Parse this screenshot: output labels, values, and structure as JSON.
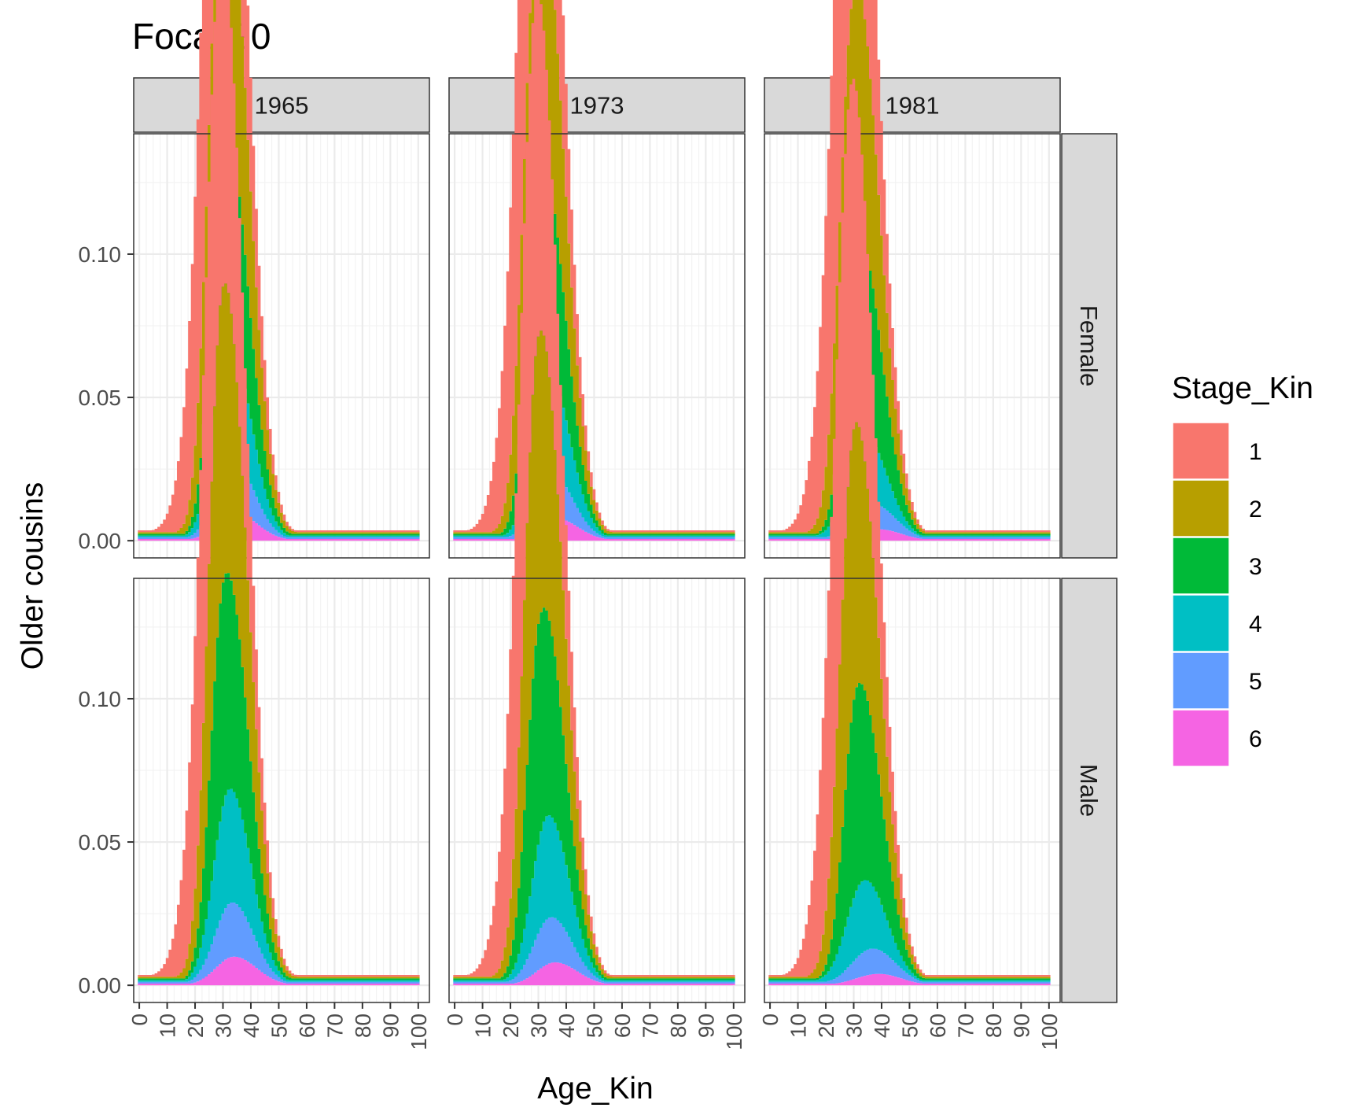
{
  "chart_data": {
    "type": "area",
    "stacked": true,
    "title": "Focal 20",
    "xlabel": "Age_Kin",
    "ylabel": "Older cousins",
    "x_ticks": [
      0,
      10,
      20,
      30,
      40,
      50,
      60,
      70,
      80,
      90,
      100
    ],
    "y_ticks": [
      "0.00",
      "0.05",
      "0.10"
    ],
    "xlim": [
      -2,
      104
    ],
    "ylim": [
      -0.006,
      0.142
    ],
    "grid": true,
    "column_facets": [
      "1965",
      "1973",
      "1981"
    ],
    "row_facets": [
      "Female",
      "Male"
    ],
    "legend": {
      "title": "Stage_Kin",
      "position": "right",
      "entries": [
        {
          "label": "1",
          "color": "#F8766D"
        },
        {
          "label": "2",
          "color": "#B79F00"
        },
        {
          "label": "3",
          "color": "#00BA38"
        },
        {
          "label": "4",
          "color": "#00BFC4"
        },
        {
          "label": "5",
          "color": "#619CFF"
        },
        {
          "label": "6",
          "color": "#F564E3"
        }
      ]
    },
    "stack_shape_note_values": "curves are gaussian bumps, given as peak value, peak age, left spread, right spread (years)",
    "panels": [
      {
        "year": "1965",
        "sex": "Female",
        "series": [
          {
            "stage": "1",
            "peak": 0.133,
            "peak_age": 26,
            "left_sd": 6.5,
            "right_sd": 9.0
          },
          {
            "stage": "2",
            "peak": 0.102,
            "peak_age": 29,
            "left_sd": 5.0,
            "right_sd": 8.5
          },
          {
            "stage": "3",
            "peak": 0.077,
            "peak_age": 30,
            "left_sd": 4.5,
            "right_sd": 8.0
          },
          {
            "stage": "4",
            "peak": 0.04,
            "peak_age": 32,
            "left_sd": 5.5,
            "right_sd": 7.5
          },
          {
            "stage": "5",
            "peak": 0.019,
            "peak_age": 33,
            "left_sd": 6.0,
            "right_sd": 7.5
          },
          {
            "stage": "6",
            "peak": 0.01,
            "peak_age": 34,
            "left_sd": 6.5,
            "right_sd": 8.0
          }
        ]
      },
      {
        "year": "1973",
        "sex": "Female",
        "series": [
          {
            "stage": "1",
            "peak": 0.132,
            "peak_age": 26,
            "left_sd": 6.5,
            "right_sd": 9.0
          },
          {
            "stage": "2",
            "peak": 0.1,
            "peak_age": 29,
            "left_sd": 5.0,
            "right_sd": 8.5
          },
          {
            "stage": "3",
            "peak": 0.076,
            "peak_age": 30,
            "left_sd": 4.5,
            "right_sd": 8.0
          },
          {
            "stage": "4",
            "peak": 0.036,
            "peak_age": 33,
            "left_sd": 5.5,
            "right_sd": 7.5
          },
          {
            "stage": "5",
            "peak": 0.016,
            "peak_age": 34,
            "left_sd": 6.0,
            "right_sd": 7.5
          },
          {
            "stage": "6",
            "peak": 0.008,
            "peak_age": 36,
            "left_sd": 6.5,
            "right_sd": 8.0
          }
        ]
      },
      {
        "year": "1981",
        "sex": "Female",
        "series": [
          {
            "stage": "1",
            "peak": 0.134,
            "peak_age": 26,
            "left_sd": 6.5,
            "right_sd": 9.0
          },
          {
            "stage": "2",
            "peak": 0.094,
            "peak_age": 29,
            "left_sd": 5.0,
            "right_sd": 8.5
          },
          {
            "stage": "3",
            "peak": 0.071,
            "peak_age": 31,
            "left_sd": 4.5,
            "right_sd": 8.0
          },
          {
            "stage": "4",
            "peak": 0.025,
            "peak_age": 33,
            "left_sd": 6.0,
            "right_sd": 7.5
          },
          {
            "stage": "5",
            "peak": 0.009,
            "peak_age": 36,
            "left_sd": 7.0,
            "right_sd": 8.0
          },
          {
            "stage": "6",
            "peak": 0.004,
            "peak_age": 39,
            "left_sd": 8.0,
            "right_sd": 8.0
          }
        ]
      },
      {
        "year": "1965",
        "sex": "Male",
        "series": [
          {
            "stage": "1",
            "peak": 0.135,
            "peak_age": 26,
            "left_sd": 6.5,
            "right_sd": 9.0
          },
          {
            "stage": "2",
            "peak": 0.104,
            "peak_age": 29,
            "left_sd": 5.0,
            "right_sd": 8.5
          },
          {
            "stage": "3",
            "peak": 0.078,
            "peak_age": 30,
            "left_sd": 4.5,
            "right_sd": 8.0
          },
          {
            "stage": "4",
            "peak": 0.04,
            "peak_age": 32,
            "left_sd": 5.5,
            "right_sd": 7.5
          },
          {
            "stage": "5",
            "peak": 0.019,
            "peak_age": 33,
            "left_sd": 6.0,
            "right_sd": 7.5
          },
          {
            "stage": "6",
            "peak": 0.01,
            "peak_age": 34,
            "left_sd": 6.5,
            "right_sd": 8.0
          }
        ]
      },
      {
        "year": "1973",
        "sex": "Male",
        "series": [
          {
            "stage": "1",
            "peak": 0.133,
            "peak_age": 26,
            "left_sd": 6.5,
            "right_sd": 9.0
          },
          {
            "stage": "2",
            "peak": 0.101,
            "peak_age": 29,
            "left_sd": 5.0,
            "right_sd": 8.5
          },
          {
            "stage": "3",
            "peak": 0.077,
            "peak_age": 30,
            "left_sd": 4.5,
            "right_sd": 8.0
          },
          {
            "stage": "4",
            "peak": 0.036,
            "peak_age": 33,
            "left_sd": 5.5,
            "right_sd": 7.5
          },
          {
            "stage": "5",
            "peak": 0.016,
            "peak_age": 34,
            "left_sd": 6.0,
            "right_sd": 7.5
          },
          {
            "stage": "6",
            "peak": 0.008,
            "peak_age": 36,
            "left_sd": 6.5,
            "right_sd": 8.0
          }
        ]
      },
      {
        "year": "1981",
        "sex": "Male",
        "series": [
          {
            "stage": "1",
            "peak": 0.135,
            "peak_age": 26,
            "left_sd": 6.5,
            "right_sd": 9.0
          },
          {
            "stage": "2",
            "peak": 0.095,
            "peak_age": 29,
            "left_sd": 5.0,
            "right_sd": 8.5
          },
          {
            "stage": "3",
            "peak": 0.071,
            "peak_age": 31,
            "left_sd": 4.5,
            "right_sd": 8.0
          },
          {
            "stage": "4",
            "peak": 0.025,
            "peak_age": 33,
            "left_sd": 6.0,
            "right_sd": 7.5
          },
          {
            "stage": "5",
            "peak": 0.009,
            "peak_age": 36,
            "left_sd": 7.0,
            "right_sd": 8.0
          },
          {
            "stage": "6",
            "peak": 0.004,
            "peak_age": 39,
            "left_sd": 8.0,
            "right_sd": 8.0
          }
        ]
      }
    ]
  }
}
